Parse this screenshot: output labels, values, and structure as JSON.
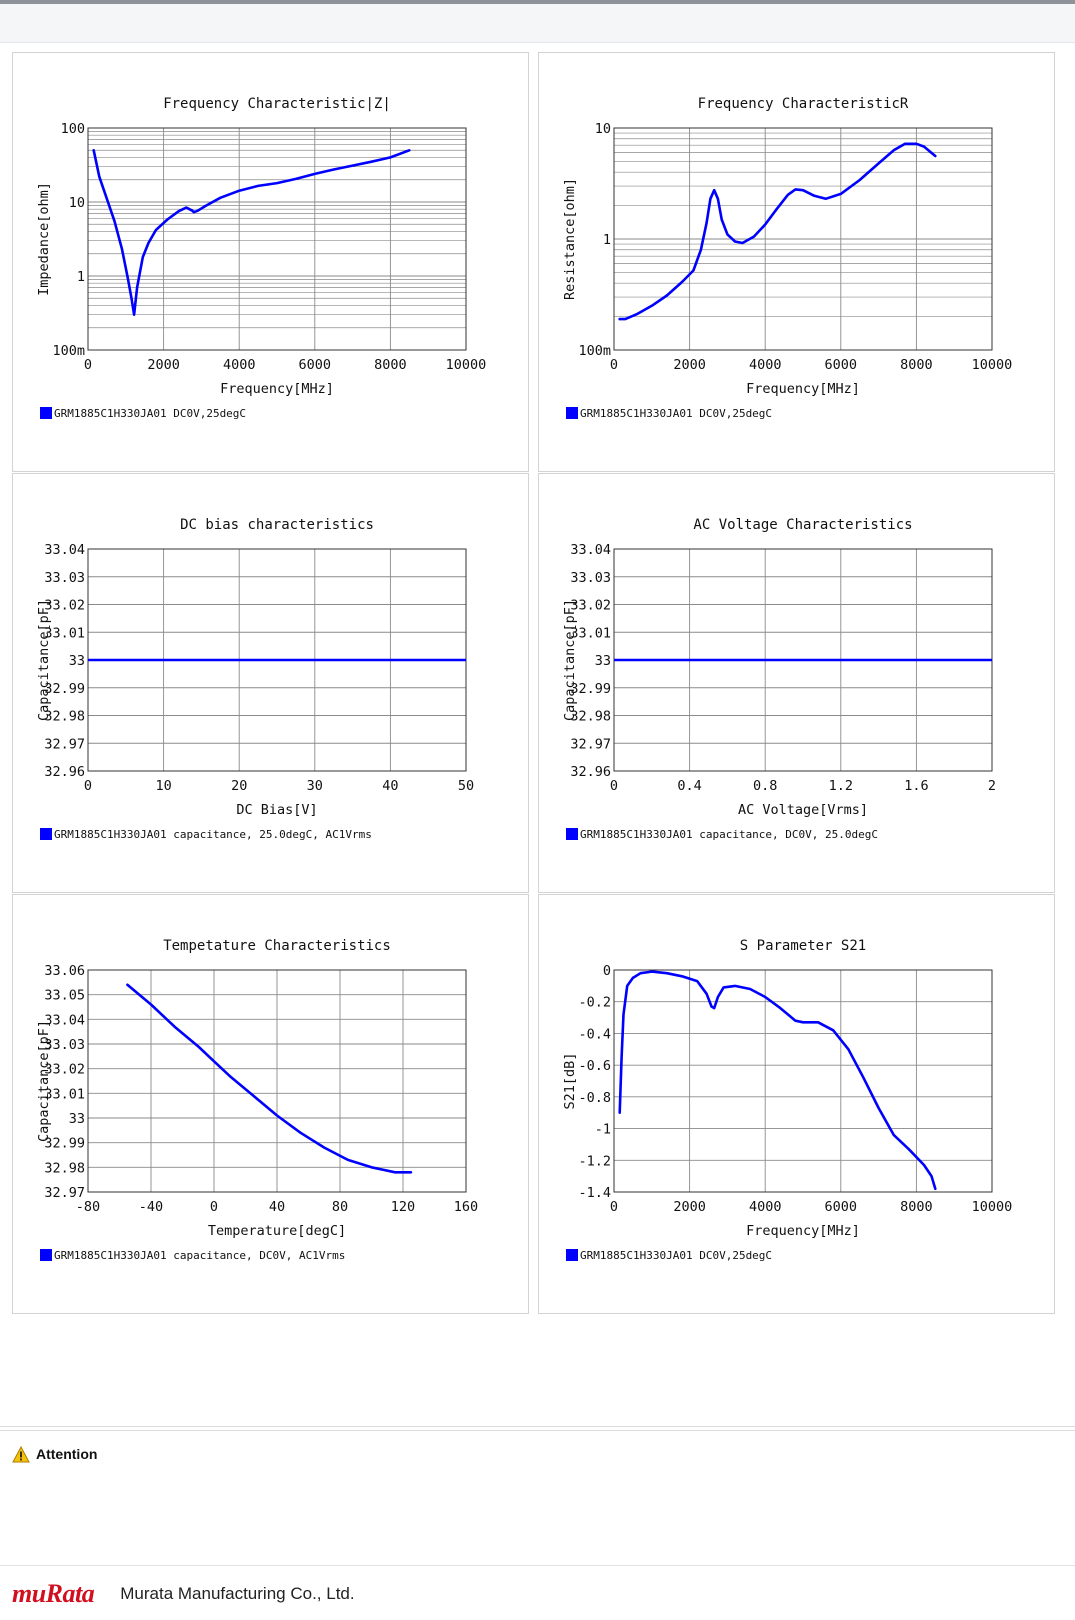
{
  "attention_label": "Attention",
  "company_name": "Murata Manufacturing Co., Ltd.",
  "logo_text": "muRata",
  "series_color": "#0000ff",
  "chart_data": [
    {
      "type": "line",
      "title": "Frequency  Characteristic|Z|",
      "xlabel": "Frequency[MHz]",
      "ylabel": "Impedance[ohm]",
      "xlim": [
        0,
        10000
      ],
      "ylim": [
        0.1,
        100
      ],
      "yscale": "log",
      "x_ticks": [
        0,
        2000,
        4000,
        6000,
        8000,
        10000
      ],
      "x_tick_labels": [
        "0",
        "2000",
        "4000",
        "6000",
        "8000",
        "10000"
      ],
      "y_ticks": [
        0.1,
        1,
        10,
        100
      ],
      "y_tick_labels": [
        "100m",
        "1",
        "10",
        "100"
      ],
      "legend": "GRM1885C1H330JA01 DC0V,25degC",
      "legend_position": "bottom-left",
      "series": [
        {
          "x": [
            150,
            300,
            500,
            700,
            900,
            1050,
            1150,
            1220,
            1300,
            1450,
            1600,
            1800,
            2100,
            2400,
            2600,
            2750,
            2800,
            2900,
            3100,
            3500,
            4000,
            4500,
            5000,
            5500,
            6000,
            6500,
            7000,
            7500,
            8000,
            8500
          ],
          "y": [
            50,
            22,
            11,
            5.5,
            2.3,
            0.95,
            0.5,
            0.3,
            0.7,
            1.8,
            2.8,
            4.2,
            5.8,
            7.5,
            8.4,
            7.7,
            7.3,
            7.6,
            8.8,
            11.4,
            14.2,
            16.5,
            18,
            20.5,
            24,
            27.5,
            31,
            35,
            40,
            50
          ]
        }
      ]
    },
    {
      "type": "line",
      "title": "Frequency  CharacteristicR",
      "xlabel": "Frequency[MHz]",
      "ylabel": "Resistance[ohm]",
      "xlim": [
        0,
        10000
      ],
      "ylim": [
        0.1,
        10
      ],
      "yscale": "log",
      "x_ticks": [
        0,
        2000,
        4000,
        6000,
        8000,
        10000
      ],
      "x_tick_labels": [
        "0",
        "2000",
        "4000",
        "6000",
        "8000",
        "10000"
      ],
      "y_ticks": [
        0.1,
        1,
        10
      ],
      "y_tick_labels": [
        "100m",
        "1",
        "10"
      ],
      "legend": "GRM1885C1H330JA01 DC0V,25degC",
      "legend_position": "bottom-left",
      "series": [
        {
          "x": [
            150,
            300,
            600,
            1000,
            1400,
            1800,
            2100,
            2300,
            2450,
            2550,
            2650,
            2750,
            2850,
            3000,
            3200,
            3400,
            3700,
            4000,
            4300,
            4600,
            4800,
            5000,
            5300,
            5600,
            6000,
            6500,
            7000,
            7400,
            7700,
            8000,
            8200,
            8500
          ],
          "y": [
            0.19,
            0.19,
            0.21,
            0.25,
            0.31,
            0.41,
            0.52,
            0.8,
            1.4,
            2.3,
            2.75,
            2.3,
            1.5,
            1.1,
            0.95,
            0.92,
            1.05,
            1.35,
            1.85,
            2.5,
            2.8,
            2.75,
            2.45,
            2.3,
            2.55,
            3.4,
            4.8,
            6.3,
            7.2,
            7.2,
            6.8,
            5.6
          ]
        }
      ]
    },
    {
      "type": "line",
      "title": "DC bias characteristics",
      "xlabel": "DC Bias[V]",
      "ylabel": "Capacitance[pF]",
      "xlim": [
        0,
        50
      ],
      "ylim": [
        32.96,
        33.04
      ],
      "x_ticks": [
        0,
        10,
        20,
        30,
        40,
        50
      ],
      "x_tick_labels": [
        "0",
        "10",
        "20",
        "30",
        "40",
        "50"
      ],
      "y_ticks": [
        32.96,
        32.97,
        32.98,
        32.99,
        33,
        33.01,
        33.02,
        33.03,
        33.04
      ],
      "y_tick_labels": [
        "32.96",
        "32.97",
        "32.98",
        "32.99",
        "33",
        "33.01",
        "33.02",
        "33.03",
        "33.04"
      ],
      "legend": "GRM1885C1H330JA01 capacitance, 25.0degC, AC1Vrms",
      "legend_position": "bottom-left",
      "series": [
        {
          "x": [
            0,
            50
          ],
          "y": [
            33,
            33
          ]
        }
      ]
    },
    {
      "type": "line",
      "title": "AC Voltage Characteristics",
      "xlabel": "AC Voltage[Vrms]",
      "ylabel": "Capacitance[pF]",
      "xlim": [
        0,
        2
      ],
      "ylim": [
        32.96,
        33.04
      ],
      "x_ticks": [
        0,
        0.4,
        0.8,
        1.2,
        1.6,
        2
      ],
      "x_tick_labels": [
        "0",
        "0.4",
        "0.8",
        "1.2",
        "1.6",
        "2"
      ],
      "y_ticks": [
        32.96,
        32.97,
        32.98,
        32.99,
        33,
        33.01,
        33.02,
        33.03,
        33.04
      ],
      "y_tick_labels": [
        "32.96",
        "32.97",
        "32.98",
        "32.99",
        "33",
        "33.01",
        "33.02",
        "33.03",
        "33.04"
      ],
      "legend": "GRM1885C1H330JA01 capacitance, DC0V, 25.0degC",
      "legend_position": "bottom-left",
      "series": [
        {
          "x": [
            0,
            2
          ],
          "y": [
            33,
            33
          ]
        }
      ]
    },
    {
      "type": "line",
      "title": "Tempetature  Characteristics",
      "xlabel": "Temperature[degC]",
      "ylabel": "Capacitance[pF]",
      "xlim": [
        -80,
        160
      ],
      "ylim": [
        32.97,
        33.06
      ],
      "x_ticks": [
        -80,
        -40,
        0,
        40,
        80,
        120,
        160
      ],
      "x_tick_labels": [
        "-80",
        "-40",
        "0",
        "40",
        "80",
        "120",
        "160"
      ],
      "y_ticks": [
        32.97,
        32.98,
        32.99,
        33,
        33.01,
        33.02,
        33.03,
        33.04,
        33.05,
        33.06
      ],
      "y_tick_labels": [
        "32.97",
        "32.98",
        "32.99",
        "33",
        "33.01",
        "33.02",
        "33.03",
        "33.04",
        "33.05",
        "33.06"
      ],
      "legend": "GRM1885C1H330JA01 capacitance, DC0V, AC1Vrms",
      "legend_position": "bottom-left",
      "series": [
        {
          "x": [
            -55,
            -40,
            -25,
            -10,
            0,
            10,
            25,
            40,
            55,
            70,
            85,
            100,
            115,
            125
          ],
          "y": [
            33.054,
            33.046,
            33.037,
            33.029,
            33.023,
            33.017,
            33.009,
            33.001,
            32.994,
            32.988,
            32.983,
            32.98,
            32.978,
            32.978
          ]
        }
      ]
    },
    {
      "type": "line",
      "title": "S Parameter S21",
      "xlabel": "Frequency[MHz]",
      "ylabel": "S21[dB]",
      "xlim": [
        0,
        10000
      ],
      "ylim": [
        -1.4,
        0
      ],
      "x_ticks": [
        0,
        2000,
        4000,
        6000,
        8000,
        10000
      ],
      "x_tick_labels": [
        "0",
        "2000",
        "4000",
        "6000",
        "8000",
        "10000"
      ],
      "y_ticks": [
        -1.4,
        -1.2,
        -1,
        -0.8,
        -0.6,
        -0.4,
        -0.2,
        0
      ],
      "y_tick_labels": [
        "-1.4",
        "-1.2",
        "-1",
        "-0.8",
        "-0.6",
        "-0.4",
        "-0.2",
        "0"
      ],
      "legend": "GRM1885C1H330JA01 DC0V,25degC",
      "legend_position": "bottom-left",
      "series": [
        {
          "x": [
            150,
            200,
            250,
            350,
            500,
            700,
            1000,
            1400,
            1800,
            2200,
            2450,
            2580,
            2650,
            2750,
            2900,
            3200,
            3600,
            4000,
            4400,
            4800,
            5000,
            5400,
            5800,
            6200,
            6600,
            7000,
            7400,
            7800,
            8200,
            8400,
            8500
          ],
          "y": [
            -0.9,
            -0.55,
            -0.28,
            -0.1,
            -0.05,
            -0.02,
            -0.01,
            -0.02,
            -0.04,
            -0.07,
            -0.15,
            -0.23,
            -0.24,
            -0.17,
            -0.11,
            -0.1,
            -0.12,
            -0.17,
            -0.24,
            -0.32,
            -0.33,
            -0.33,
            -0.38,
            -0.5,
            -0.68,
            -0.87,
            -1.04,
            -1.13,
            -1.23,
            -1.3,
            -1.38
          ]
        }
      ]
    }
  ]
}
